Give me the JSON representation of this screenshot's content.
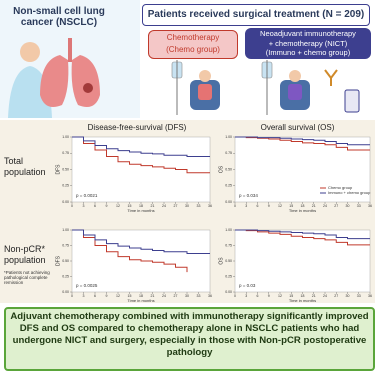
{
  "header": {
    "left_title": "Non-small cell lung cancer (NSCLC)",
    "right_title": "Patients received surgical treatment (N = 209)",
    "chemo_box": {
      "line1": "Chemotherapy",
      "line2": "(Chemo group)"
    },
    "nict_box": {
      "line1": "Neoadjuvant immunotherapy",
      "line2": "+ chemotherapy (NICT)",
      "line3": "(Immuno + chemo group)"
    }
  },
  "columns": [
    "Disease-free-survival (DFS)",
    "Overall survival (OS)"
  ],
  "rows": [
    {
      "line1": "Total",
      "line2": "population"
    },
    {
      "line1": "Non-pCR*",
      "line2": "population"
    }
  ],
  "footnote": "*Patients not achieving pathological complete remission",
  "conclusion": "Adjuvant chemotherapy combined with immunotherapy significantly improved DFS and OS compared to chemotherapy alone in NSCLC patients who had undergone NICT and surgery, especially in those with Non-pCR postoperative pathology",
  "chart_data": [
    {
      "type": "line",
      "y_label": "DFS",
      "x_label": "Time in months",
      "annotation": "p = 0.0021",
      "legend": false,
      "x": [
        0,
        3,
        6,
        9,
        12,
        15,
        18,
        21,
        24,
        27,
        30,
        33,
        36
      ],
      "xlim": [
        0,
        36
      ],
      "ylim": [
        0,
        1
      ],
      "xticks": [
        0,
        3,
        6,
        9,
        12,
        15,
        18,
        21,
        24,
        27,
        30,
        33,
        36
      ],
      "yticks": [
        {
          "value": 0,
          "label": "0.00"
        },
        {
          "value": 0.25,
          "label": "0.25"
        },
        {
          "value": 0.5,
          "label": "0.50"
        },
        {
          "value": 0.75,
          "label": "0.75"
        },
        {
          "value": 1,
          "label": "1.00"
        }
      ],
      "series": [
        {
          "color": "#c0392b",
          "values": [
            1,
            0.9,
            0.8,
            0.7,
            0.62,
            0.58,
            0.56,
            0.54,
            0.52,
            0.5,
            0.45,
            0.45,
            0.45
          ]
        },
        {
          "color": "#3d3f8f",
          "values": [
            1,
            0.94,
            0.87,
            0.82,
            0.79,
            0.77,
            0.75,
            0.74,
            0.72,
            0.72,
            0.7,
            0.7,
            0.7
          ]
        }
      ]
    },
    {
      "type": "line",
      "y_label": "OS",
      "x_label": "Time in months",
      "annotation": "p = 0.034",
      "legend": true,
      "x": [
        0,
        3,
        6,
        9,
        12,
        15,
        18,
        21,
        24,
        27,
        30,
        33,
        36
      ],
      "xlim": [
        0,
        36
      ],
      "ylim": [
        0,
        1
      ],
      "xticks": [
        0,
        3,
        6,
        9,
        12,
        15,
        18,
        21,
        24,
        27,
        30,
        33,
        36
      ],
      "yticks": [
        {
          "value": 0,
          "label": "0.00"
        },
        {
          "value": 0.25,
          "label": "0.25"
        },
        {
          "value": 0.5,
          "label": "0.50"
        },
        {
          "value": 0.75,
          "label": "0.75"
        },
        {
          "value": 1,
          "label": "1.00"
        }
      ],
      "series": [
        {
          "name": "Chemo group",
          "color": "#c0392b",
          "values": [
            1,
            0.99,
            0.98,
            0.97,
            0.95,
            0.93,
            0.91,
            0.9,
            0.88,
            0.84,
            0.8,
            0.8,
            0.8
          ]
        },
        {
          "name": "Immuno + chemo group",
          "color": "#3d3f8f",
          "values": [
            1,
            1,
            0.99,
            0.99,
            0.98,
            0.97,
            0.96,
            0.95,
            0.93,
            0.9,
            0.88,
            0.88,
            0.88
          ]
        }
      ]
    },
    {
      "type": "line",
      "y_label": "DFS",
      "x_label": "Time in months",
      "annotation": "p = 0.0025",
      "legend": false,
      "x": [
        0,
        3,
        6,
        9,
        12,
        15,
        18,
        21,
        24,
        27,
        30,
        33,
        36
      ],
      "xlim": [
        0,
        36
      ],
      "ylim": [
        0,
        1
      ],
      "xticks": [
        0,
        3,
        6,
        9,
        12,
        15,
        18,
        21,
        24,
        27,
        30,
        33,
        36
      ],
      "yticks": [
        {
          "value": 0,
          "label": "0.00"
        },
        {
          "value": 0.25,
          "label": "0.25"
        },
        {
          "value": 0.5,
          "label": "0.50"
        },
        {
          "value": 0.75,
          "label": "0.75"
        },
        {
          "value": 1,
          "label": "1.00"
        }
      ],
      "series": [
        {
          "color": "#c0392b",
          "values": [
            1,
            0.88,
            0.75,
            0.65,
            0.57,
            0.52,
            0.5,
            0.48,
            0.45,
            0.4,
            0.32,
            null,
            null
          ]
        },
        {
          "color": "#3d3f8f",
          "values": [
            1,
            0.92,
            0.84,
            0.78,
            0.74,
            0.71,
            0.69,
            0.67,
            0.65,
            0.65,
            0.62,
            0.62,
            0.62
          ]
        }
      ]
    },
    {
      "type": "line",
      "y_label": "OS",
      "x_label": "Time in months",
      "annotation": "p = 0.03",
      "legend": false,
      "x": [
        0,
        3,
        6,
        9,
        12,
        15,
        18,
        21,
        24,
        27,
        30,
        33,
        36
      ],
      "xlim": [
        0,
        36
      ],
      "ylim": [
        0,
        1
      ],
      "xticks": [
        0,
        3,
        6,
        9,
        12,
        15,
        18,
        21,
        24,
        27,
        30,
        33,
        36
      ],
      "yticks": [
        {
          "value": 0,
          "label": "0.00"
        },
        {
          "value": 0.25,
          "label": "0.25"
        },
        {
          "value": 0.5,
          "label": "0.50"
        },
        {
          "value": 0.75,
          "label": "0.75"
        },
        {
          "value": 1,
          "label": "1.00"
        }
      ],
      "series": [
        {
          "color": "#c0392b",
          "values": [
            1,
            0.99,
            0.97,
            0.95,
            0.93,
            0.9,
            0.88,
            0.86,
            0.84,
            0.8,
            0.76,
            0.76,
            0.76
          ]
        },
        {
          "color": "#3d3f8f",
          "values": [
            1,
            1,
            0.99,
            0.98,
            0.97,
            0.96,
            0.95,
            0.94,
            0.92,
            0.88,
            0.86,
            0.86,
            0.86
          ]
        }
      ]
    }
  ]
}
